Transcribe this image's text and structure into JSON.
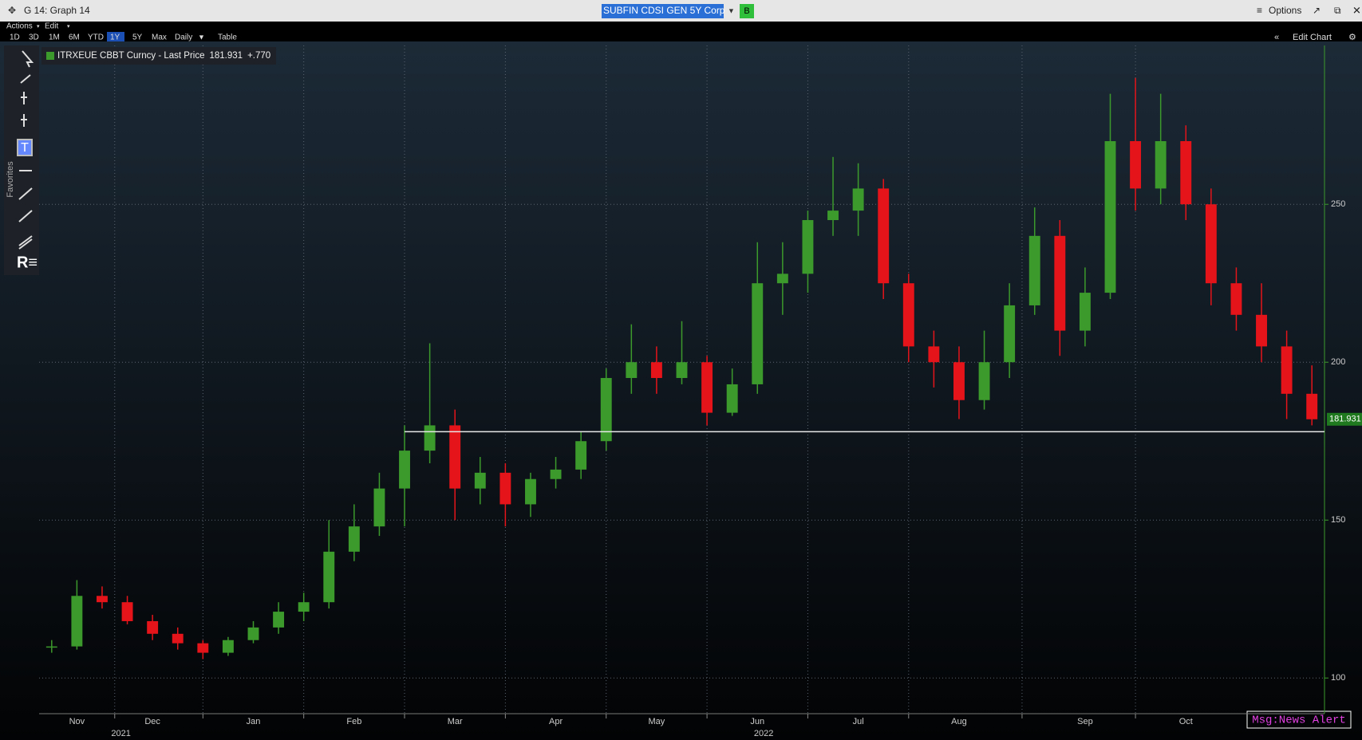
{
  "app": {
    "window_title": "G 14: Graph 14",
    "security": "SUBFIN CDSI GEN 5Y Corp",
    "security_button": "B",
    "options": "Options",
    "menu": [
      "Actions",
      "Edit"
    ],
    "periods": [
      "1D",
      "3D",
      "1M",
      "6M",
      "YTD",
      "1Y",
      "5Y",
      "Max"
    ],
    "active_period": "1Y",
    "frequency": "Daily",
    "table": "Table",
    "edit_chart": "Edit Chart",
    "favorites": "Favorites",
    "msg": "Msg:News Alert"
  },
  "chart_data": {
    "type": "candlestick",
    "categories": [
      null,
      "Nov",
      null,
      null,
      "Dec",
      null,
      null,
      null,
      "Jan",
      null,
      null,
      null,
      "Feb",
      null,
      null,
      null,
      "Mar",
      null,
      null,
      null,
      "Apr",
      null,
      null,
      null,
      "May",
      null,
      null,
      null,
      "Jun",
      null,
      null,
      null,
      "Jul",
      null,
      null,
      null,
      "Aug",
      null,
      null,
      null,
      null,
      "Sep",
      null,
      null,
      null,
      "Oct",
      null,
      null,
      null,
      null,
      null
    ],
    "years": [
      "2021",
      "2022"
    ],
    "series": [
      {
        "name": "ITRXEUE CBBT Curncy - Last Price",
        "change": "+.770",
        "up_color": "#3c9a2c",
        "down_color": "#e4141a",
        "values": [
          [
            110,
            112,
            108,
            110
          ],
          [
            110,
            131,
            109,
            126
          ],
          [
            126,
            129,
            122,
            124
          ],
          [
            124,
            126,
            117,
            118
          ],
          [
            118,
            120,
            112,
            114
          ],
          [
            114,
            116,
            109,
            111
          ],
          [
            111,
            112,
            106,
            108
          ],
          [
            108,
            113,
            107,
            112
          ],
          [
            112,
            118,
            111,
            116
          ],
          [
            116,
            124,
            114,
            121
          ],
          [
            121,
            127,
            118,
            124
          ],
          [
            124,
            150,
            122,
            140
          ],
          [
            140,
            155,
            137,
            148
          ],
          [
            148,
            165,
            145,
            160
          ],
          [
            160,
            180,
            148,
            172
          ],
          [
            172,
            206,
            168,
            180
          ],
          [
            180,
            185,
            150,
            160
          ],
          [
            160,
            170,
            155,
            165
          ],
          [
            165,
            168,
            148,
            155
          ],
          [
            155,
            165,
            151,
            163
          ],
          [
            163,
            170,
            160,
            166
          ],
          [
            166,
            178,
            163,
            175
          ],
          [
            175,
            198,
            172,
            195
          ],
          [
            195,
            212,
            190,
            200
          ],
          [
            200,
            205,
            190,
            195
          ],
          [
            195,
            213,
            193,
            200
          ],
          [
            200,
            202,
            180,
            184
          ],
          [
            184,
            198,
            183,
            193
          ],
          [
            193,
            238,
            190,
            225
          ],
          [
            225,
            238,
            215,
            228
          ],
          [
            228,
            248,
            222,
            245
          ],
          [
            245,
            265,
            240,
            248
          ],
          [
            248,
            263,
            240,
            255
          ],
          [
            255,
            258,
            220,
            225
          ],
          [
            225,
            228,
            200,
            205
          ],
          [
            205,
            210,
            192,
            200
          ],
          [
            200,
            205,
            182,
            188
          ],
          [
            188,
            210,
            185,
            200
          ],
          [
            200,
            225,
            195,
            218
          ],
          [
            218,
            249,
            215,
            240
          ],
          [
            240,
            245,
            202,
            210
          ],
          [
            210,
            230,
            205,
            222
          ],
          [
            222,
            285,
            220,
            270
          ],
          [
            270,
            290,
            248,
            255
          ],
          [
            255,
            285,
            250,
            270
          ],
          [
            270,
            275,
            245,
            250
          ],
          [
            250,
            255,
            218,
            225
          ],
          [
            225,
            230,
            210,
            215
          ],
          [
            215,
            225,
            200,
            205
          ],
          [
            205,
            210,
            182,
            190
          ],
          [
            190,
            199,
            180,
            181.931
          ]
        ]
      }
    ],
    "ylim": [
      88.7,
      300.3
    ],
    "yticks": [
      100,
      150,
      200,
      250
    ],
    "grid": true,
    "reference_line": 178
  }
}
